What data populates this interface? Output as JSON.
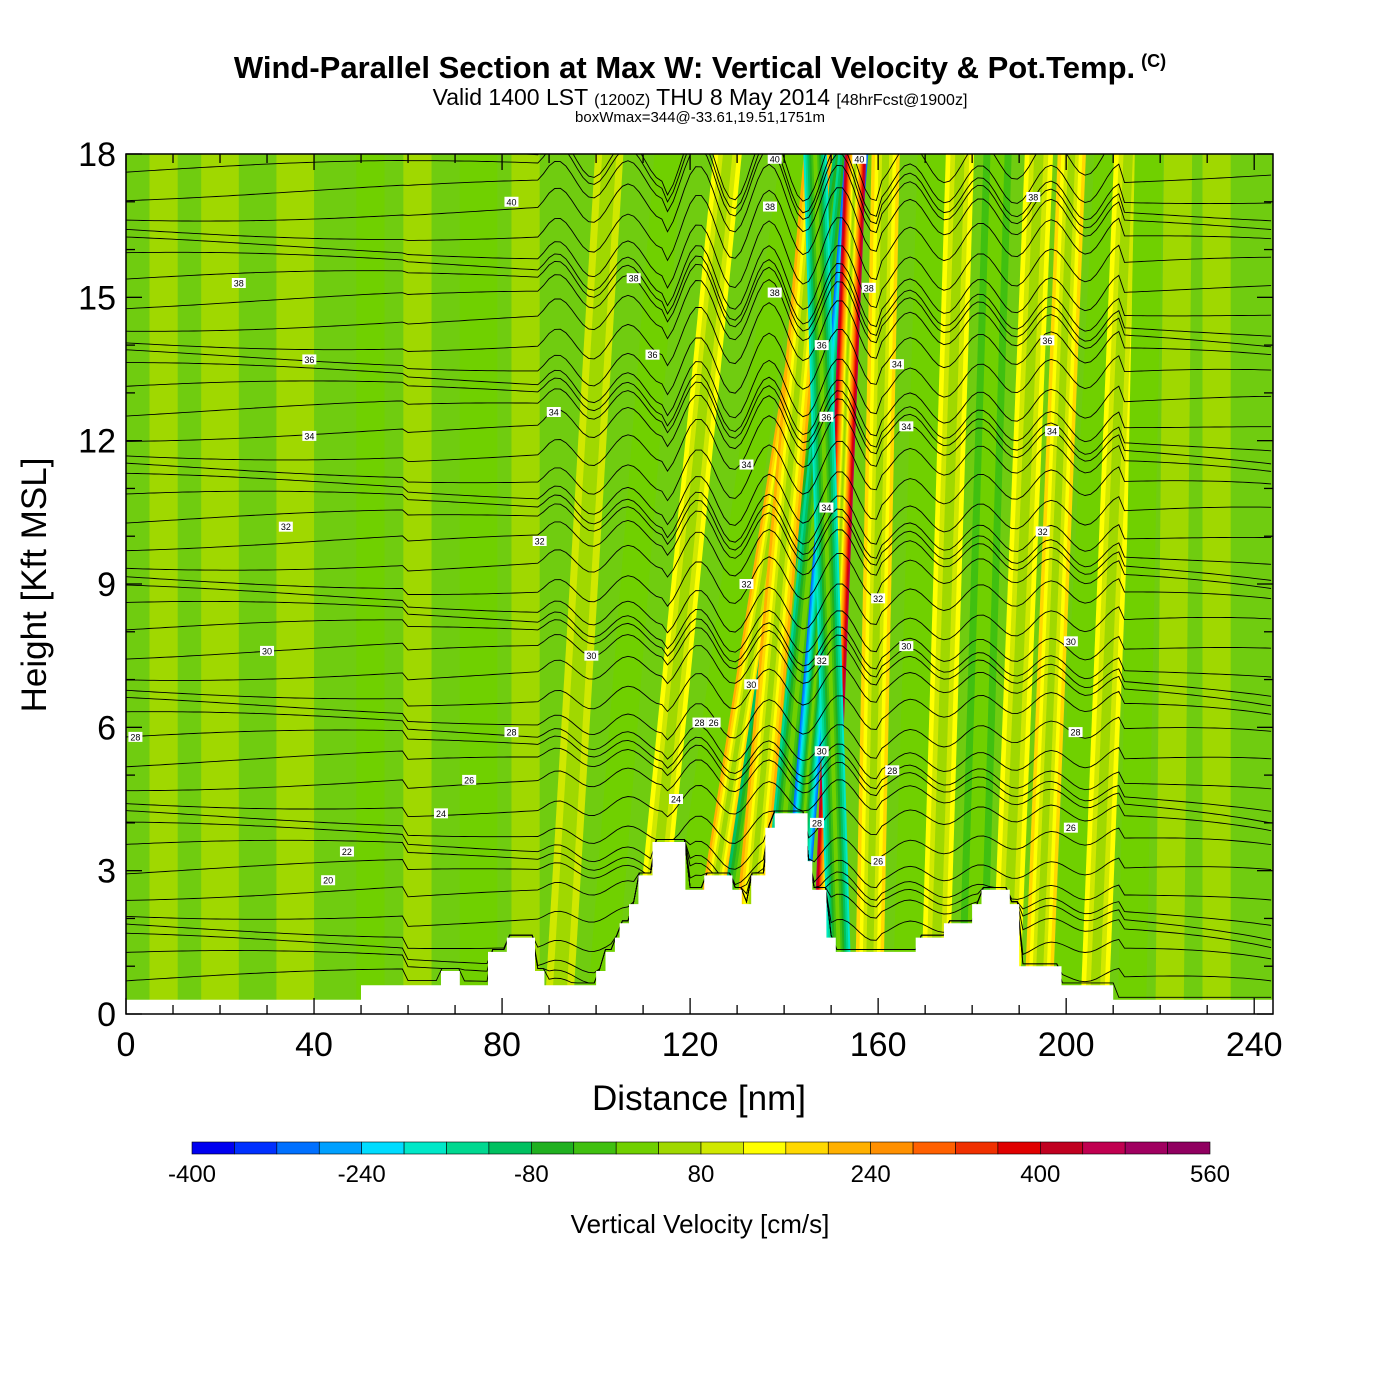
{
  "title": {
    "main": "Wind-Parallel Section at Max W: Vertical Velocity & Pot.Temp.",
    "copyright": "(C)",
    "valid_prefix": "Valid 1400 LST",
    "valid_utc": "(1200Z)",
    "valid_date": "THU 8 May 2014",
    "forecast": "[48hrFcst@1900z]",
    "box_info": "boxWmax=344@-33.61,19.51,1751m"
  },
  "chart_data": {
    "type": "heatmap",
    "xlabel": "Distance [nm]",
    "ylabel": "Height [Kft MSL]",
    "xlim": [
      0,
      244
    ],
    "ylim": [
      0,
      18
    ],
    "x_ticks": [
      "0",
      "40",
      "80",
      "120",
      "160",
      "200",
      "240"
    ],
    "x_tick_values": [
      0,
      40,
      80,
      120,
      160,
      200,
      240
    ],
    "y_ticks": [
      "0",
      "3",
      "6",
      "9",
      "12",
      "15",
      "18"
    ],
    "y_tick_values": [
      0,
      3,
      6,
      9,
      12,
      15,
      18
    ],
    "colorbar": {
      "label": "Vertical Velocity [cm/s]",
      "min": -400,
      "max": 560,
      "step": 40,
      "tick_labels": [
        "-400",
        "-240",
        "-80",
        "80",
        "240",
        "400",
        "560"
      ],
      "tick_values": [
        -400,
        -240,
        -80,
        80,
        240,
        400,
        560
      ],
      "colors": [
        "#0000f0",
        "#0030ff",
        "#0070ff",
        "#00a0ff",
        "#00dcff",
        "#00e8c8",
        "#00d890",
        "#00c060",
        "#20b020",
        "#40c010",
        "#70d000",
        "#a0d800",
        "#d0e800",
        "#ffff00",
        "#ffd800",
        "#ffb000",
        "#ff9000",
        "#ff6000",
        "#f03000",
        "#e00000",
        "#c00020",
        "#c00050",
        "#a00060",
        "#900060"
      ]
    },
    "background_color": "#70cc10",
    "terrain_color": "#ffffff",
    "contour_color": "#000000",
    "terrain_kft": [
      [
        0,
        0.3
      ],
      [
        50,
        0.3
      ],
      [
        50,
        0.6
      ],
      [
        67,
        0.6
      ],
      [
        67,
        0.9
      ],
      [
        71,
        0.9
      ],
      [
        71,
        0.6
      ],
      [
        77,
        0.6
      ],
      [
        77,
        1.3
      ],
      [
        81,
        1.3
      ],
      [
        81,
        1.6
      ],
      [
        87,
        1.6
      ],
      [
        87,
        0.9
      ],
      [
        89,
        0.9
      ],
      [
        89,
        0.6
      ],
      [
        100,
        0.6
      ],
      [
        100,
        0.9
      ],
      [
        102,
        0.9
      ],
      [
        102,
        1.3
      ],
      [
        104,
        1.3
      ],
      [
        104,
        1.6
      ],
      [
        105,
        1.6
      ],
      [
        105,
        1.9
      ],
      [
        107,
        1.9
      ],
      [
        107,
        2.3
      ],
      [
        109,
        2.3
      ],
      [
        109,
        2.9
      ],
      [
        112,
        2.9
      ],
      [
        112,
        3.6
      ],
      [
        119,
        3.6
      ],
      [
        119,
        2.6
      ],
      [
        123,
        2.6
      ],
      [
        123,
        2.9
      ],
      [
        129,
        2.9
      ],
      [
        129,
        2.6
      ],
      [
        131,
        2.6
      ],
      [
        131,
        2.3
      ],
      [
        133,
        2.3
      ],
      [
        133,
        2.9
      ],
      [
        136,
        2.9
      ],
      [
        136,
        3.9
      ],
      [
        138,
        3.9
      ],
      [
        138,
        4.2
      ],
      [
        145,
        4.2
      ],
      [
        145,
        3.2
      ],
      [
        146,
        3.2
      ],
      [
        146,
        2.6
      ],
      [
        149,
        2.6
      ],
      [
        149,
        1.6
      ],
      [
        151,
        1.6
      ],
      [
        151,
        1.3
      ],
      [
        168,
        1.3
      ],
      [
        168,
        1.6
      ],
      [
        174,
        1.6
      ],
      [
        174,
        1.9
      ],
      [
        180,
        1.9
      ],
      [
        180,
        2.3
      ],
      [
        182,
        2.3
      ],
      [
        182,
        2.6
      ],
      [
        188,
        2.6
      ],
      [
        188,
        2.3
      ],
      [
        190,
        2.3
      ],
      [
        190,
        1.0
      ],
      [
        199,
        1.0
      ],
      [
        199,
        0.6
      ],
      [
        210,
        0.6
      ],
      [
        210,
        0.3
      ],
      [
        244,
        0.3
      ]
    ],
    "bands": [
      {
        "x": 8,
        "slope": 0,
        "w": 3,
        "val": 0
      },
      {
        "x": 20,
        "slope": 0,
        "w": 4,
        "val": 40
      },
      {
        "x": 36,
        "slope": 0,
        "w": 4,
        "val": 0
      },
      {
        "x": 52,
        "slope": 0,
        "w": 3,
        "val": -40
      },
      {
        "x": 62,
        "slope": 0,
        "w": 3,
        "val": 0
      },
      {
        "x": 75,
        "slope": 0,
        "w": 4,
        "val": -40
      },
      {
        "x": 85,
        "slope": 0,
        "w": 3,
        "val": 0
      },
      {
        "x": 92,
        "slope": 0.6,
        "w": 3,
        "val": 80
      },
      {
        "x": 101,
        "slope": 0.8,
        "w": 3,
        "val": -40
      },
      {
        "x": 110,
        "slope": 1.0,
        "w": 3,
        "val": 120
      },
      {
        "x": 117,
        "slope": 1.4,
        "w": 3,
        "val": -40
      },
      {
        "x": 121,
        "slope": 1.6,
        "w": 2.5,
        "val": 200
      },
      {
        "x": 126,
        "slope": 1.5,
        "w": 2.5,
        "val": -160
      },
      {
        "x": 131,
        "slope": 0.9,
        "w": 3,
        "val": 200
      },
      {
        "x": 136,
        "slope": 1.0,
        "w": 2.5,
        "val": -200
      },
      {
        "x": 141,
        "slope": 0.8,
        "w": 2.5,
        "val": -360
      },
      {
        "x": 148,
        "slope": 0.4,
        "w": 2.3,
        "val": 420
      },
      {
        "x": 152,
        "slope": -0.3,
        "w": 2.5,
        "val": -240
      },
      {
        "x": 158,
        "slope": 0.2,
        "w": 3,
        "val": 160
      },
      {
        "x": 166,
        "slope": 0.3,
        "w": 3,
        "val": -40
      },
      {
        "x": 172,
        "slope": 0.3,
        "w": 3,
        "val": 120
      },
      {
        "x": 180,
        "slope": 0.3,
        "w": 3,
        "val": -80
      },
      {
        "x": 187,
        "slope": 0.4,
        "w": 3,
        "val": 120
      },
      {
        "x": 194,
        "slope": 0.4,
        "w": 3,
        "val": 160
      },
      {
        "x": 200,
        "slope": 0.5,
        "w": 3,
        "val": -40
      },
      {
        "x": 206,
        "slope": 0.4,
        "w": 3,
        "val": 120
      },
      {
        "x": 214,
        "slope": 0.2,
        "w": 3,
        "val": -40
      },
      {
        "x": 222,
        "slope": 0.1,
        "w": 3,
        "val": 40
      },
      {
        "x": 232,
        "slope": 0,
        "w": 3,
        "val": 0
      }
    ],
    "theta_levels": [
      20,
      22,
      24,
      26,
      28,
      30,
      32,
      34,
      36,
      38,
      40
    ],
    "contour_labels": [
      {
        "text": "40",
        "x": 82,
        "y": 17.0
      },
      {
        "text": "38",
        "x": 24,
        "y": 15.3
      },
      {
        "text": "38",
        "x": 108,
        "y": 15.4
      },
      {
        "text": "36",
        "x": 39,
        "y": 13.7
      },
      {
        "text": "36",
        "x": 112,
        "y": 13.8
      },
      {
        "text": "34",
        "x": 39,
        "y": 12.1
      },
      {
        "text": "34",
        "x": 91,
        "y": 12.6
      },
      {
        "text": "32",
        "x": 34,
        "y": 10.2
      },
      {
        "text": "32",
        "x": 88,
        "y": 9.9
      },
      {
        "text": "30",
        "x": 30,
        "y": 7.6
      },
      {
        "text": "30",
        "x": 99,
        "y": 7.5
      },
      {
        "text": "28",
        "x": 2,
        "y": 5.8
      },
      {
        "text": "28",
        "x": 82,
        "y": 5.9
      },
      {
        "text": "26",
        "x": 73,
        "y": 4.9
      },
      {
        "text": "24",
        "x": 67,
        "y": 4.2
      },
      {
        "text": "22",
        "x": 47,
        "y": 3.4
      },
      {
        "text": "20",
        "x": 43,
        "y": 2.8
      },
      {
        "text": "40",
        "x": 138,
        "y": 17.9
      },
      {
        "text": "38",
        "x": 137,
        "y": 16.9
      },
      {
        "text": "38",
        "x": 138,
        "y": 15.1
      },
      {
        "text": "36",
        "x": 148,
        "y": 14.0
      },
      {
        "text": "36",
        "x": 149,
        "y": 12.5
      },
      {
        "text": "34",
        "x": 132,
        "y": 11.5
      },
      {
        "text": "34",
        "x": 149,
        "y": 10.6
      },
      {
        "text": "32",
        "x": 132,
        "y": 9.0
      },
      {
        "text": "30",
        "x": 133,
        "y": 6.9
      },
      {
        "text": "28",
        "x": 122,
        "y": 6.1
      },
      {
        "text": "26",
        "x": 125,
        "y": 6.1
      },
      {
        "text": "24",
        "x": 117,
        "y": 4.5
      },
      {
        "text": "32",
        "x": 148,
        "y": 7.4
      },
      {
        "text": "30",
        "x": 148,
        "y": 5.5
      },
      {
        "text": "28",
        "x": 147,
        "y": 4.0
      },
      {
        "text": "40",
        "x": 156,
        "y": 17.9
      },
      {
        "text": "38",
        "x": 158,
        "y": 15.2
      },
      {
        "text": "34",
        "x": 164,
        "y": 13.6
      },
      {
        "text": "34",
        "x": 166,
        "y": 12.3
      },
      {
        "text": "32",
        "x": 160,
        "y": 8.7
      },
      {
        "text": "30",
        "x": 166,
        "y": 7.7
      },
      {
        "text": "28",
        "x": 163,
        "y": 5.1
      },
      {
        "text": "26",
        "x": 160,
        "y": 3.2
      },
      {
        "text": "38",
        "x": 193,
        "y": 17.1
      },
      {
        "text": "36",
        "x": 196,
        "y": 14.1
      },
      {
        "text": "34",
        "x": 197,
        "y": 12.2
      },
      {
        "text": "32",
        "x": 195,
        "y": 10.1
      },
      {
        "text": "30",
        "x": 201,
        "y": 7.8
      },
      {
        "text": "28",
        "x": 202,
        "y": 5.9
      },
      {
        "text": "26",
        "x": 201,
        "y": 3.9
      }
    ]
  }
}
